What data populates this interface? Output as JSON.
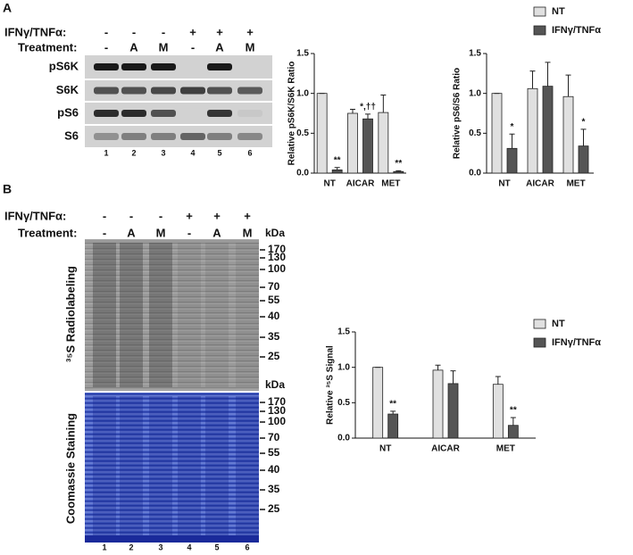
{
  "panel_a": {
    "label": "A",
    "ifn_label": "IFNγ/TNFα:",
    "treatment_label": "Treatment:",
    "ifn": [
      "-",
      "-",
      "-",
      "+",
      "+",
      "+"
    ],
    "treatment": [
      "-",
      "A",
      "M",
      "-",
      "A",
      "M"
    ],
    "blots": [
      "pS6K",
      "S6K",
      "pS6",
      "S6"
    ],
    "lanes": [
      1,
      2,
      3,
      4,
      5,
      6
    ]
  },
  "panel_b": {
    "label": "B",
    "ifn_label": "IFNγ/TNFα:",
    "treatment_label": "Treatment:",
    "ifn": [
      "-",
      "-",
      "-",
      "+",
      "+",
      "+"
    ],
    "treatment": [
      "-",
      "A",
      "M",
      "-",
      "A",
      "M"
    ],
    "kda_label": "kDa",
    "markers": [
      170,
      130,
      100,
      70,
      55,
      40,
      35,
      25
    ],
    "gels": [
      "³⁵S Radiolabeling",
      "Coomassie Staining"
    ],
    "lanes": [
      1,
      2,
      3,
      4,
      5,
      6
    ]
  },
  "chart_data": [
    {
      "type": "bar",
      "y_label": "Relative pS6K/S6K Ratio",
      "categories": [
        "NT",
        "AICAR",
        "MET"
      ],
      "ylim": [
        0,
        1.5
      ],
      "yticks": [
        {
          "value": 0,
          "label": "0.0"
        },
        {
          "value": 0.5,
          "label": "0.5"
        },
        {
          "value": 1,
          "label": "1.0"
        },
        {
          "value": 1.5,
          "label": "1.5"
        }
      ],
      "series": [
        {
          "color": "#e0e0e0",
          "values": [
            1.0,
            0.75,
            0.76
          ],
          "errors": [
            0,
            0.05,
            0.22
          ],
          "annotations": [
            null,
            null,
            null
          ]
        },
        {
          "color": "#555555",
          "values": [
            0.04,
            0.68,
            0.02
          ],
          "errors": [
            0.03,
            0.06,
            0.01
          ],
          "annotations": [
            "**",
            "*,††",
            "**"
          ]
        }
      ]
    },
    {
      "type": "bar",
      "y_label": "Relative pS6/S6 Ratio",
      "categories": [
        "NT",
        "AICAR",
        "MET"
      ],
      "ylim": [
        0,
        1.5
      ],
      "yticks": [
        {
          "value": 0,
          "label": "0.0"
        },
        {
          "value": 0.5,
          "label": "0.5"
        },
        {
          "value": 1,
          "label": "1.0"
        },
        {
          "value": 1.5,
          "label": "1.5"
        }
      ],
      "series": [
        {
          "name": "NT",
          "color": "#e0e0e0",
          "values": [
            1.0,
            1.06,
            0.96
          ],
          "errors": [
            0,
            0.22,
            0.27
          ],
          "annotations": [
            null,
            null,
            null
          ]
        },
        {
          "name": "IFNγ/TNFα",
          "color": "#555555",
          "values": [
            0.31,
            1.09,
            0.34
          ],
          "errors": [
            0.18,
            0.3,
            0.21
          ],
          "annotations": [
            "*",
            null,
            "*"
          ]
        }
      ]
    },
    {
      "type": "bar",
      "y_label": "Relative ³⁵S Signal",
      "categories": [
        "NT",
        "AICAR",
        "MET"
      ],
      "ylim": [
        0,
        1.5
      ],
      "yticks": [
        {
          "value": 0,
          "label": "0.0"
        },
        {
          "value": 0.5,
          "label": "0.5"
        },
        {
          "value": 1,
          "label": "1.0"
        },
        {
          "value": 1.5,
          "label": "1.5"
        }
      ],
      "series": [
        {
          "name": "NT",
          "color": "#e0e0e0",
          "values": [
            1.0,
            0.96,
            0.76
          ],
          "errors": [
            0,
            0.07,
            0.11
          ],
          "annotations": [
            null,
            null,
            null
          ]
        },
        {
          "name": "IFNγ/TNFα",
          "color": "#555555",
          "values": [
            0.34,
            0.77,
            0.18
          ],
          "errors": [
            0.04,
            0.18,
            0.11
          ],
          "annotations": [
            "**",
            null,
            "**"
          ]
        }
      ]
    }
  ]
}
